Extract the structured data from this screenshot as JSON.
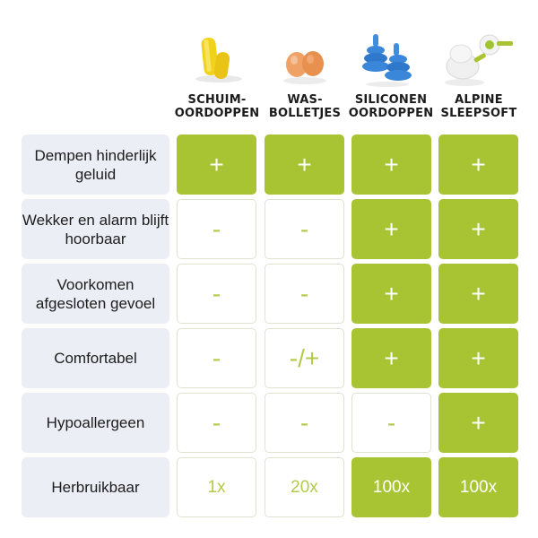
{
  "colors": {
    "accent": "#a8c432",
    "label_bg": "#eceef5",
    "off_text": "#b2ca4a"
  },
  "products": [
    {
      "label": "SCHUIM-\nOORDOPPEN",
      "icon": "yellow-foam-earplugs-icon"
    },
    {
      "label": "WAS-\nBOLLETJES",
      "icon": "orange-wax-balls-icon"
    },
    {
      "label": "SILICONEN\nOORDOPPEN",
      "icon": "blue-silicone-earplugs-icon"
    },
    {
      "label": "ALPINE\nSLEEPSOFT",
      "icon": "alpine-sleepsoft-earplugs-icon"
    }
  ],
  "rows": [
    {
      "label": "Dempen hinderlijk geluid",
      "cells": [
        "+",
        "+",
        "+",
        "+"
      ]
    },
    {
      "label": "Wekker en alarm blijft hoorbaar",
      "cells": [
        "-",
        "-",
        "+",
        "+"
      ]
    },
    {
      "label": "Voorkomen afgesloten gevoel",
      "cells": [
        "-",
        "-",
        "+",
        "+"
      ]
    },
    {
      "label": "Comfortabel",
      "cells": [
        "-",
        "-/+",
        "+",
        "+"
      ]
    },
    {
      "label": "Hypoallergeen",
      "cells": [
        "-",
        "-",
        "-",
        "+"
      ]
    },
    {
      "label": "Herbruikbaar",
      "cells": [
        "1x",
        "20x",
        "100x",
        "100x"
      ]
    }
  ],
  "highlight": [
    [
      true,
      true,
      true,
      true
    ],
    [
      false,
      false,
      true,
      true
    ],
    [
      false,
      false,
      true,
      true
    ],
    [
      false,
      false,
      true,
      true
    ],
    [
      false,
      false,
      false,
      true
    ],
    [
      false,
      false,
      true,
      true
    ]
  ]
}
